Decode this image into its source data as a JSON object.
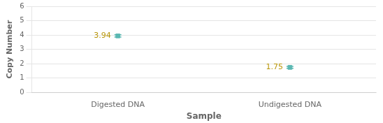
{
  "chart_data": {
    "type": "scatter",
    "categories": [
      "Digested DNA",
      "Undigested DNA"
    ],
    "values": [
      3.94,
      1.75
    ],
    "errors": [
      0.08,
      0.07
    ],
    "color": "#5BB8B2",
    "marker": "square",
    "xlabel": "Sample",
    "ylabel": "Copy Number",
    "ylim": [
      0,
      6
    ],
    "yticks": [
      0,
      1,
      2,
      3,
      4,
      5,
      6
    ],
    "grid": true,
    "data_labels": true
  }
}
